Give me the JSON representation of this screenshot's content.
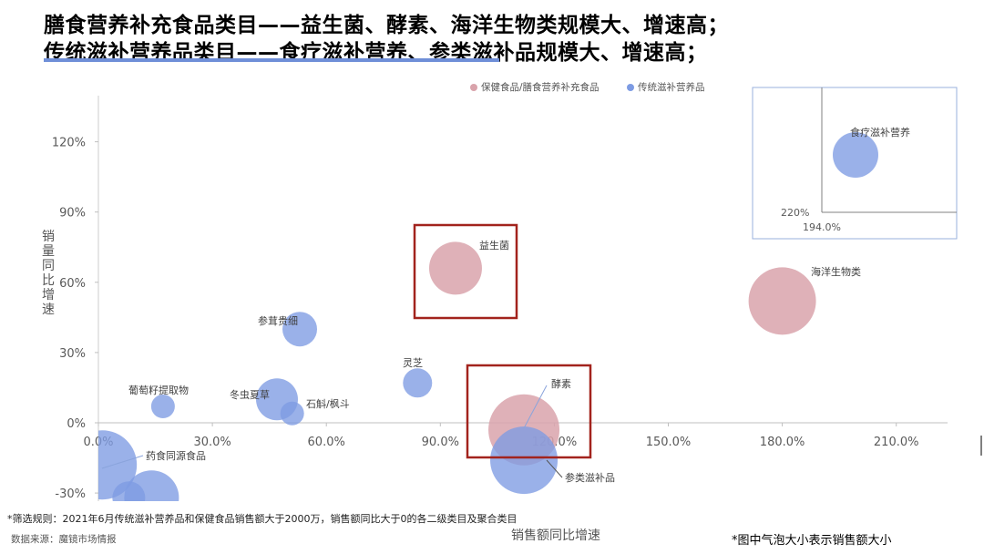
{
  "title_line1": "膳食营养补充食品类目——益生菌、酵素、海洋生物类规模大、增速高；",
  "title_line2": "传统滋补营养品类目——食疗滋补营养、参类滋补品规模大、增速高；",
  "footnote_rule": "*筛选规则：2021年6月传统滋补营养品和保健食品销售额大于2000万，销售额同比大于0的各二级类目及聚合类目",
  "footnote_source": "数据来源：魔镜市场情报",
  "footnote_bubble": "*图中气泡大小表示销售额大小",
  "colors": {
    "pink": "#d9a3ab",
    "blue": "#7d9be3",
    "highlight": "#a2231d",
    "inset_border": "#9ab0dc"
  },
  "chart_data": {
    "type": "scatter",
    "xlabel": "销售额同比增速",
    "ylabel": "销量同比增速",
    "xlim": [
      0,
      230
    ],
    "ylim": [
      -30,
      135
    ],
    "x_ticks": [
      "0.0%",
      "30.0%",
      "60.0%",
      "90.0%",
      "120.0%",
      "150.0%",
      "180.0%",
      "210.0%"
    ],
    "y_ticks": [
      "-30%",
      "0%",
      "30%",
      "60%",
      "90%",
      "120%"
    ],
    "legend": [
      "保健食品/膳食营养补充食品",
      "传统滋补营养品"
    ],
    "points": [
      {
        "label": "益生菌",
        "x": 94,
        "y": 66,
        "size": 29,
        "series": 0
      },
      {
        "label": "酵素",
        "x": 112,
        "y": -3,
        "size": 39,
        "series": 0
      },
      {
        "label": "海洋生物类",
        "x": 180,
        "y": 52,
        "size": 37,
        "series": 0
      },
      {
        "label": "参类滋补品",
        "x": 112,
        "y": -16,
        "size": 37,
        "series": 1
      },
      {
        "label": "参茸贵细",
        "x": 53,
        "y": 40,
        "size": 19,
        "series": 1
      },
      {
        "label": "灵芝",
        "x": 84,
        "y": 17,
        "size": 16,
        "series": 1
      },
      {
        "label": "冬虫夏草",
        "x": 47,
        "y": 10,
        "size": 23,
        "series": 1
      },
      {
        "label": "石斛/枫斗",
        "x": 51,
        "y": 4,
        "size": 13,
        "series": 1
      },
      {
        "label": "葡萄籽提取物",
        "x": 17,
        "y": 7,
        "size": 13,
        "series": 1
      },
      {
        "label": "药食同源食品",
        "x": 1,
        "y": -18,
        "size": 38,
        "series": 1
      },
      {
        "label": "",
        "x": 14,
        "y": -32,
        "size": 30,
        "series": 1
      },
      {
        "label": "",
        "x": 8,
        "y": -32,
        "size": 18,
        "series": 1
      }
    ],
    "inset": {
      "label": "食疗滋补营养",
      "x_text": "194.0%",
      "y_text": "220%",
      "series": 1
    },
    "highlights": [
      "益生菌",
      "酵素"
    ]
  }
}
